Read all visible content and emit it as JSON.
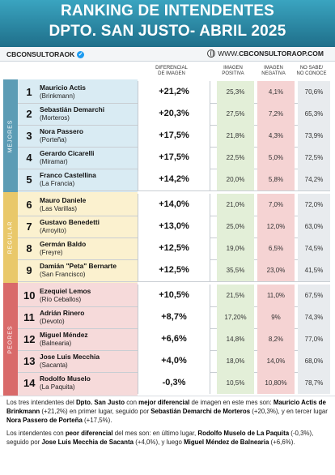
{
  "header": {
    "title_line1": "RANKING DE INTENDENTES",
    "title_line2": "DPTO. SAN JUSTO- ABRIL 2025"
  },
  "brand": {
    "handle": "CBCONSULTORAOK",
    "www": "WWW.",
    "url": "CBCONSULTORAOP.COM",
    "accent": "#1d9bf0"
  },
  "columns": {
    "diferencial": "DIFERENCIAL DE IMAGEN",
    "positiva": "IMAGEN POSITIVA",
    "negativa": "IMAGEN NEGATIVA",
    "nsnc": "NO SABE/ NO CONOCE"
  },
  "bands": [
    {
      "label": "MEJORES",
      "color": "#5c9cb5"
    },
    {
      "label": "REGULAR",
      "color": "#e9c86a"
    },
    {
      "label": "PEORES",
      "color": "#d96a6a"
    }
  ],
  "rows": [
    {
      "rank": "1",
      "name": "Mauricio Actis",
      "locality": "(Brinkmann)",
      "diferencial": "+21,2%",
      "positiva": "25,3%",
      "negativa": "4,1%",
      "nsnc": "70,6%"
    },
    {
      "rank": "2",
      "name": "Sebastián Demarchi",
      "locality": "(Morteros)",
      "diferencial": "+20,3%",
      "positiva": "27,5%",
      "negativa": "7,2%",
      "nsnc": "65,3%"
    },
    {
      "rank": "3",
      "name": "Nora Passero",
      "locality": "(Porteña)",
      "diferencial": "+17,5%",
      "positiva": "21,8%",
      "negativa": "4,3%",
      "nsnc": "73,9%"
    },
    {
      "rank": "4",
      "name": "Gerardo Cicarelli",
      "locality": "(Miramar)",
      "diferencial": "+17,5%",
      "positiva": "22,5%",
      "negativa": "5,0%",
      "nsnc": "72,5%"
    },
    {
      "rank": "5",
      "name": "Franco Castellina",
      "locality": "(La Francia)",
      "diferencial": "+14,2%",
      "positiva": "20,0%",
      "negativa": "5,8%",
      "nsnc": "74,2%"
    },
    {
      "rank": "6",
      "name": "Mauro Daniele",
      "locality": "(Las Varillas)",
      "diferencial": "+14,0%",
      "positiva": "21,0%",
      "negativa": "7,0%",
      "nsnc": "72,0%"
    },
    {
      "rank": "7",
      "name": "Gustavo Benedetti",
      "locality": "(Arroyito)",
      "diferencial": "+13,0%",
      "positiva": "25,0%",
      "negativa": "12,0%",
      "nsnc": "63,0%"
    },
    {
      "rank": "8",
      "name": "Germán Baldo",
      "locality": "(Freyre)",
      "diferencial": "+12,5%",
      "positiva": "19,0%",
      "negativa": "6,5%",
      "nsnc": "74,5%"
    },
    {
      "rank": "9",
      "name": "Damián \"Peta\" Bernarte",
      "locality": "(San Francisco)",
      "diferencial": "+12,5%",
      "positiva": "35,5%",
      "negativa": "23,0%",
      "nsnc": "41,5%"
    },
    {
      "rank": "10",
      "name": "Ezequiel Lemos",
      "locality": "(Río Ceballos)",
      "diferencial": "+10,5%",
      "positiva": "21,5%",
      "negativa": "11,0%",
      "nsnc": "67,5%"
    },
    {
      "rank": "11",
      "name": "Adrián Rinero",
      "locality": "(Devoto)",
      "diferencial": "+8,7%",
      "positiva": "17,20%",
      "negativa": "9%",
      "nsnc": "74,3%"
    },
    {
      "rank": "12",
      "name": "Miguel Méndez",
      "locality": "(Balnearia)",
      "diferencial": "+6,6%",
      "positiva": "14,8%",
      "negativa": "8,2%",
      "nsnc": "77,0%"
    },
    {
      "rank": "13",
      "name": "Jose Luis Mecchia",
      "locality": "(Sacanta)",
      "diferencial": "+4,0%",
      "positiva": "18,0%",
      "negativa": "14,0%",
      "nsnc": "68,0%"
    },
    {
      "rank": "14",
      "name": "Rodolfo Muselo",
      "locality": "(La Paquita)",
      "diferencial": "-0,3%",
      "positiva": "10,5%",
      "negativa": "10,80%",
      "nsnc": "78,7%"
    }
  ],
  "notes": {
    "p1": [
      {
        "t": "Los tres intendentes del ",
        "b": false
      },
      {
        "t": "Dpto. San Justo",
        "b": true
      },
      {
        "t": " con ",
        "b": false
      },
      {
        "t": "mejor diferencial",
        "b": true
      },
      {
        "t": " de imagen en este mes son: ",
        "b": false
      },
      {
        "t": "Mauricio Actis de Brinkmann",
        "b": true
      },
      {
        "t": " (+21,2%) en primer lugar, seguido por ",
        "b": false
      },
      {
        "t": "Sebastián Demarchi de Morteros",
        "b": true
      },
      {
        "t": " (+20,3%), y en tercer lugar ",
        "b": false
      },
      {
        "t": "Nora Passero de Porteña",
        "b": true
      },
      {
        "t": " (+17,5%).",
        "b": false
      }
    ],
    "p2": [
      {
        "t": "Los intendentes con ",
        "b": false
      },
      {
        "t": "peor diferencial",
        "b": true
      },
      {
        "t": " del mes son: en último lugar, ",
        "b": false
      },
      {
        "t": "Rodolfo Muselo de La Paquita",
        "b": true
      },
      {
        "t": " (-0,3%), seguido por ",
        "b": false
      },
      {
        "t": "Jose Luis Mecchia de Sacanta",
        "b": true
      },
      {
        "t": " (+4,0%), y luego ",
        "b": false
      },
      {
        "t": "Miguel Méndez de Balnearia",
        "b": true
      },
      {
        "t": " (+6,6%).",
        "b": false
      }
    ]
  }
}
